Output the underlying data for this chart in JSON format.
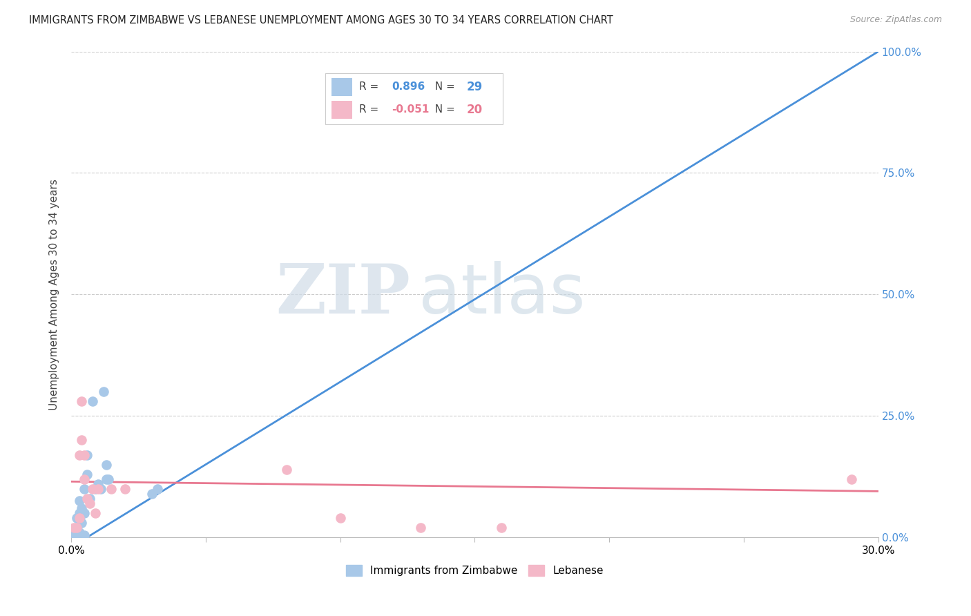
{
  "title": "IMMIGRANTS FROM ZIMBABWE VS LEBANESE UNEMPLOYMENT AMONG AGES 30 TO 34 YEARS CORRELATION CHART",
  "source": "Source: ZipAtlas.com",
  "ylabel": "Unemployment Among Ages 30 to 34 years",
  "watermark_zip": "ZIP",
  "watermark_atlas": "atlas",
  "series1_name": "Immigrants from Zimbabwe",
  "series2_name": "Lebanese",
  "series1_color": "#a8c8e8",
  "series2_color": "#f4b8c8",
  "trendline1_color": "#4a90d9",
  "trendline2_color": "#e87890",
  "R1": 0.896,
  "N1": 29,
  "R2": -0.051,
  "N2": 20,
  "xmin": 0.0,
  "xmax": 0.3,
  "ymin": 0.0,
  "ymax": 1.0,
  "yticks": [
    0.0,
    0.25,
    0.5,
    0.75,
    1.0
  ],
  "ytick_labels": [
    "0.0%",
    "25.0%",
    "50.0%",
    "75.0%",
    "100.0%"
  ],
  "xticks": [
    0.0,
    0.05,
    0.1,
    0.15,
    0.2,
    0.25,
    0.3
  ],
  "xtick_labels": [
    "0.0%",
    "",
    "",
    "",
    "",
    "",
    "30.0%"
  ],
  "trendline1_x0": 0.0,
  "trendline1_y0": -0.02,
  "trendline1_x1": 0.3,
  "trendline1_y1": 1.0,
  "trendline2_x0": 0.0,
  "trendline2_y0": 0.115,
  "trendline2_x1": 0.3,
  "trendline2_y1": 0.095,
  "series1_x": [
    0.001,
    0.001,
    0.002,
    0.002,
    0.002,
    0.003,
    0.003,
    0.003,
    0.003,
    0.003,
    0.004,
    0.004,
    0.004,
    0.005,
    0.005,
    0.005,
    0.006,
    0.006,
    0.007,
    0.008,
    0.009,
    0.01,
    0.011,
    0.012,
    0.013,
    0.013,
    0.014,
    0.03,
    0.032
  ],
  "series1_y": [
    0.005,
    0.01,
    0.005,
    0.02,
    0.04,
    0.005,
    0.01,
    0.04,
    0.05,
    0.075,
    0.005,
    0.03,
    0.06,
    0.005,
    0.05,
    0.1,
    0.13,
    0.17,
    0.08,
    0.28,
    0.1,
    0.11,
    0.1,
    0.3,
    0.12,
    0.15,
    0.12,
    0.09,
    0.1
  ],
  "series2_x": [
    0.001,
    0.002,
    0.003,
    0.003,
    0.004,
    0.004,
    0.005,
    0.005,
    0.006,
    0.007,
    0.008,
    0.009,
    0.01,
    0.015,
    0.02,
    0.08,
    0.1,
    0.13,
    0.16,
    0.29
  ],
  "series2_y": [
    0.02,
    0.02,
    0.04,
    0.17,
    0.28,
    0.2,
    0.12,
    0.17,
    0.08,
    0.07,
    0.1,
    0.05,
    0.1,
    0.1,
    0.1,
    0.14,
    0.04,
    0.02,
    0.02,
    0.12
  ]
}
